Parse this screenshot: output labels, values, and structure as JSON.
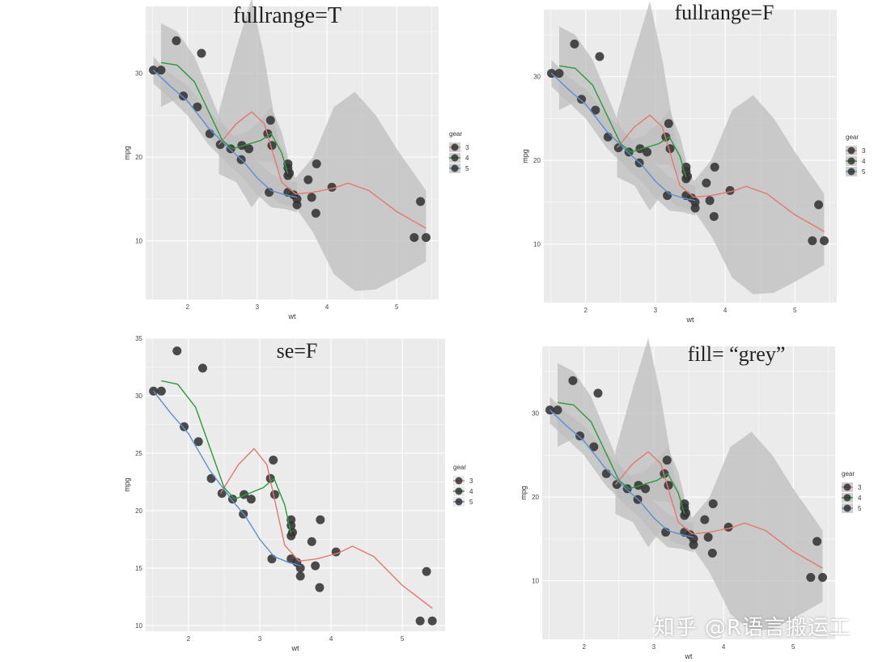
{
  "watermark": "知乎 @R语言搬运工",
  "colors": {
    "panel_bg": "#ebebeb",
    "grid": "#ffffff",
    "band": "#bdbdbd",
    "point": "#333333",
    "gear3": "#e5776f",
    "gear4": "#2a9a3a",
    "gear5": "#5b8fd6"
  },
  "chart_data": [
    {
      "type": "scatter",
      "title": "fullrange=T",
      "xlabel": "wt",
      "ylabel": "mpg",
      "xlim": [
        1.4,
        5.6
      ],
      "ylim": [
        3,
        38
      ],
      "xticks": [
        "2",
        "3",
        "4",
        "5"
      ],
      "yticks": [
        "10",
        "20",
        "30"
      ],
      "se": true,
      "fill": "grey",
      "legend": {
        "title": "gear",
        "labels": [
          "3",
          "4",
          "5"
        ],
        "position": "right"
      }
    },
    {
      "type": "scatter",
      "title": "fullrange=F",
      "xlabel": "wt",
      "ylabel": "mpg",
      "xlim": [
        1.4,
        5.6
      ],
      "ylim": [
        3,
        38
      ],
      "xticks": [
        "2",
        "3",
        "4",
        "5"
      ],
      "yticks": [
        "10",
        "20",
        "30"
      ],
      "se": true,
      "fill": "grey",
      "legend": {
        "title": "gear",
        "labels": [
          "3",
          "4",
          "5"
        ],
        "position": "right"
      }
    },
    {
      "type": "scatter",
      "title": "se=F",
      "xlabel": "wt",
      "ylabel": "mpg",
      "xlim": [
        1.4,
        5.6
      ],
      "ylim": [
        9.5,
        35
      ],
      "xticks": [
        "2",
        "3",
        "4",
        "5"
      ],
      "yticks": [
        "10",
        "15",
        "20",
        "25",
        "30",
        "35"
      ],
      "se": false,
      "legend": {
        "title": "gear",
        "labels": [
          "3",
          "4",
          "5"
        ],
        "position": "right"
      }
    },
    {
      "type": "scatter",
      "title": "fill= “grey”",
      "xlabel": "wt",
      "ylabel": "mpg",
      "xlim": [
        1.4,
        5.6
      ],
      "ylim": [
        3,
        38
      ],
      "xticks": [
        "2",
        "3",
        "4",
        "5"
      ],
      "yticks": [
        "10",
        "20",
        "30"
      ],
      "se": true,
      "fill": "grey",
      "legend": {
        "title": "gear",
        "labels": [
          "3",
          "4",
          "5"
        ],
        "position": "right"
      }
    }
  ],
  "points": [
    {
      "x": 1.51,
      "y": 30.4
    },
    {
      "x": 1.62,
      "y": 30.4
    },
    {
      "x": 1.84,
      "y": 33.9
    },
    {
      "x": 1.94,
      "y": 27.3
    },
    {
      "x": 2.14,
      "y": 26.0
    },
    {
      "x": 2.2,
      "y": 32.4
    },
    {
      "x": 2.32,
      "y": 22.8
    },
    {
      "x": 2.47,
      "y": 21.5
    },
    {
      "x": 2.62,
      "y": 21.0
    },
    {
      "x": 2.78,
      "y": 21.4
    },
    {
      "x": 2.88,
      "y": 21.0
    },
    {
      "x": 2.77,
      "y": 19.7
    },
    {
      "x": 3.15,
      "y": 22.8
    },
    {
      "x": 3.19,
      "y": 24.4
    },
    {
      "x": 3.17,
      "y": 15.8
    },
    {
      "x": 3.21,
      "y": 21.4
    },
    {
      "x": 3.44,
      "y": 18.7
    },
    {
      "x": 3.44,
      "y": 19.2
    },
    {
      "x": 3.44,
      "y": 17.8
    },
    {
      "x": 3.44,
      "y": 15.8
    },
    {
      "x": 3.46,
      "y": 18.1
    },
    {
      "x": 3.52,
      "y": 15.5
    },
    {
      "x": 3.57,
      "y": 14.3
    },
    {
      "x": 3.57,
      "y": 15.0
    },
    {
      "x": 3.73,
      "y": 17.3
    },
    {
      "x": 3.78,
      "y": 15.2
    },
    {
      "x": 3.84,
      "y": 13.3
    },
    {
      "x": 3.85,
      "y": 19.2
    },
    {
      "x": 4.07,
      "y": 16.4
    },
    {
      "x": 5.25,
      "y": 10.4
    },
    {
      "x": 5.34,
      "y": 14.7
    },
    {
      "x": 5.42,
      "y": 10.4
    }
  ],
  "curves": {
    "gear3": [
      [
        2.45,
        21.5
      ],
      [
        2.7,
        24
      ],
      [
        2.92,
        25.4
      ],
      [
        3.1,
        24
      ],
      [
        3.35,
        17
      ],
      [
        3.55,
        15.6
      ],
      [
        3.8,
        15.8
      ],
      [
        4.1,
        16.3
      ],
      [
        4.3,
        16.9
      ],
      [
        4.6,
        16
      ],
      [
        5.0,
        13.5
      ],
      [
        5.42,
        11.5
      ]
    ],
    "gear4": [
      [
        1.62,
        31.3
      ],
      [
        1.85,
        31
      ],
      [
        2.1,
        29
      ],
      [
        2.3,
        25.5
      ],
      [
        2.5,
        22
      ],
      [
        2.65,
        21
      ],
      [
        2.85,
        21.5
      ],
      [
        3.05,
        22
      ],
      [
        3.2,
        22.8
      ],
      [
        3.35,
        20.5
      ],
      [
        3.44,
        18
      ]
    ],
    "gear5": [
      [
        1.51,
        30.4
      ],
      [
        1.75,
        28.5
      ],
      [
        2.0,
        26.7
      ],
      [
        2.3,
        23.5
      ],
      [
        2.6,
        21
      ],
      [
        2.8,
        19.5
      ],
      [
        3.0,
        17.5
      ],
      [
        3.2,
        16
      ],
      [
        3.4,
        15.5
      ],
      [
        3.57,
        15.2
      ]
    ]
  },
  "bands": {
    "gear3_fullrange": {
      "upper": [
        [
          2.45,
          25.5
        ],
        [
          2.7,
          33
        ],
        [
          2.92,
          39
        ],
        [
          3.1,
          32
        ],
        [
          3.3,
          22
        ],
        [
          3.55,
          17.5
        ],
        [
          3.8,
          20
        ],
        [
          4.1,
          26
        ],
        [
          4.4,
          27.8
        ],
        [
          4.7,
          25
        ],
        [
          5.0,
          21
        ],
        [
          5.42,
          16
        ]
      ],
      "lower": [
        [
          2.45,
          18
        ],
        [
          2.7,
          17
        ],
        [
          2.92,
          14
        ],
        [
          3.1,
          16
        ],
        [
          3.3,
          14.5
        ],
        [
          3.55,
          14
        ],
        [
          3.8,
          11
        ],
        [
          4.1,
          6
        ],
        [
          4.4,
          4
        ],
        [
          4.7,
          4.2
        ],
        [
          5.0,
          5.5
        ],
        [
          5.42,
          7.5
        ]
      ]
    },
    "gear4": {
      "upper": [
        [
          1.62,
          36
        ],
        [
          1.85,
          35
        ],
        [
          2.1,
          32
        ],
        [
          2.3,
          28
        ],
        [
          2.5,
          24
        ],
        [
          2.65,
          22.5
        ],
        [
          2.85,
          23
        ],
        [
          3.05,
          24.5
        ],
        [
          3.2,
          26
        ],
        [
          3.35,
          23
        ],
        [
          3.44,
          20
        ]
      ],
      "lower": [
        [
          1.62,
          26
        ],
        [
          1.85,
          27
        ],
        [
          2.1,
          26
        ],
        [
          2.3,
          23
        ],
        [
          2.5,
          20
        ],
        [
          2.65,
          19.5
        ],
        [
          2.85,
          20
        ],
        [
          3.05,
          19.5
        ],
        [
          3.2,
          19.5
        ],
        [
          3.35,
          18
        ],
        [
          3.44,
          16
        ]
      ]
    },
    "gear5": {
      "upper": [
        [
          1.51,
          32
        ],
        [
          1.75,
          30
        ],
        [
          2.0,
          28.5
        ],
        [
          2.3,
          25.5
        ],
        [
          2.6,
          23
        ],
        [
          2.8,
          21.5
        ],
        [
          3.0,
          19.5
        ],
        [
          3.2,
          18
        ],
        [
          3.4,
          17.2
        ],
        [
          3.57,
          17
        ]
      ],
      "lower": [
        [
          1.51,
          28.8
        ],
        [
          1.75,
          27
        ],
        [
          2.0,
          25
        ],
        [
          2.3,
          21.5
        ],
        [
          2.6,
          19
        ],
        [
          2.8,
          17.5
        ],
        [
          3.0,
          15.5
        ],
        [
          3.2,
          14
        ],
        [
          3.4,
          13.8
        ],
        [
          3.57,
          13.4
        ]
      ]
    }
  }
}
